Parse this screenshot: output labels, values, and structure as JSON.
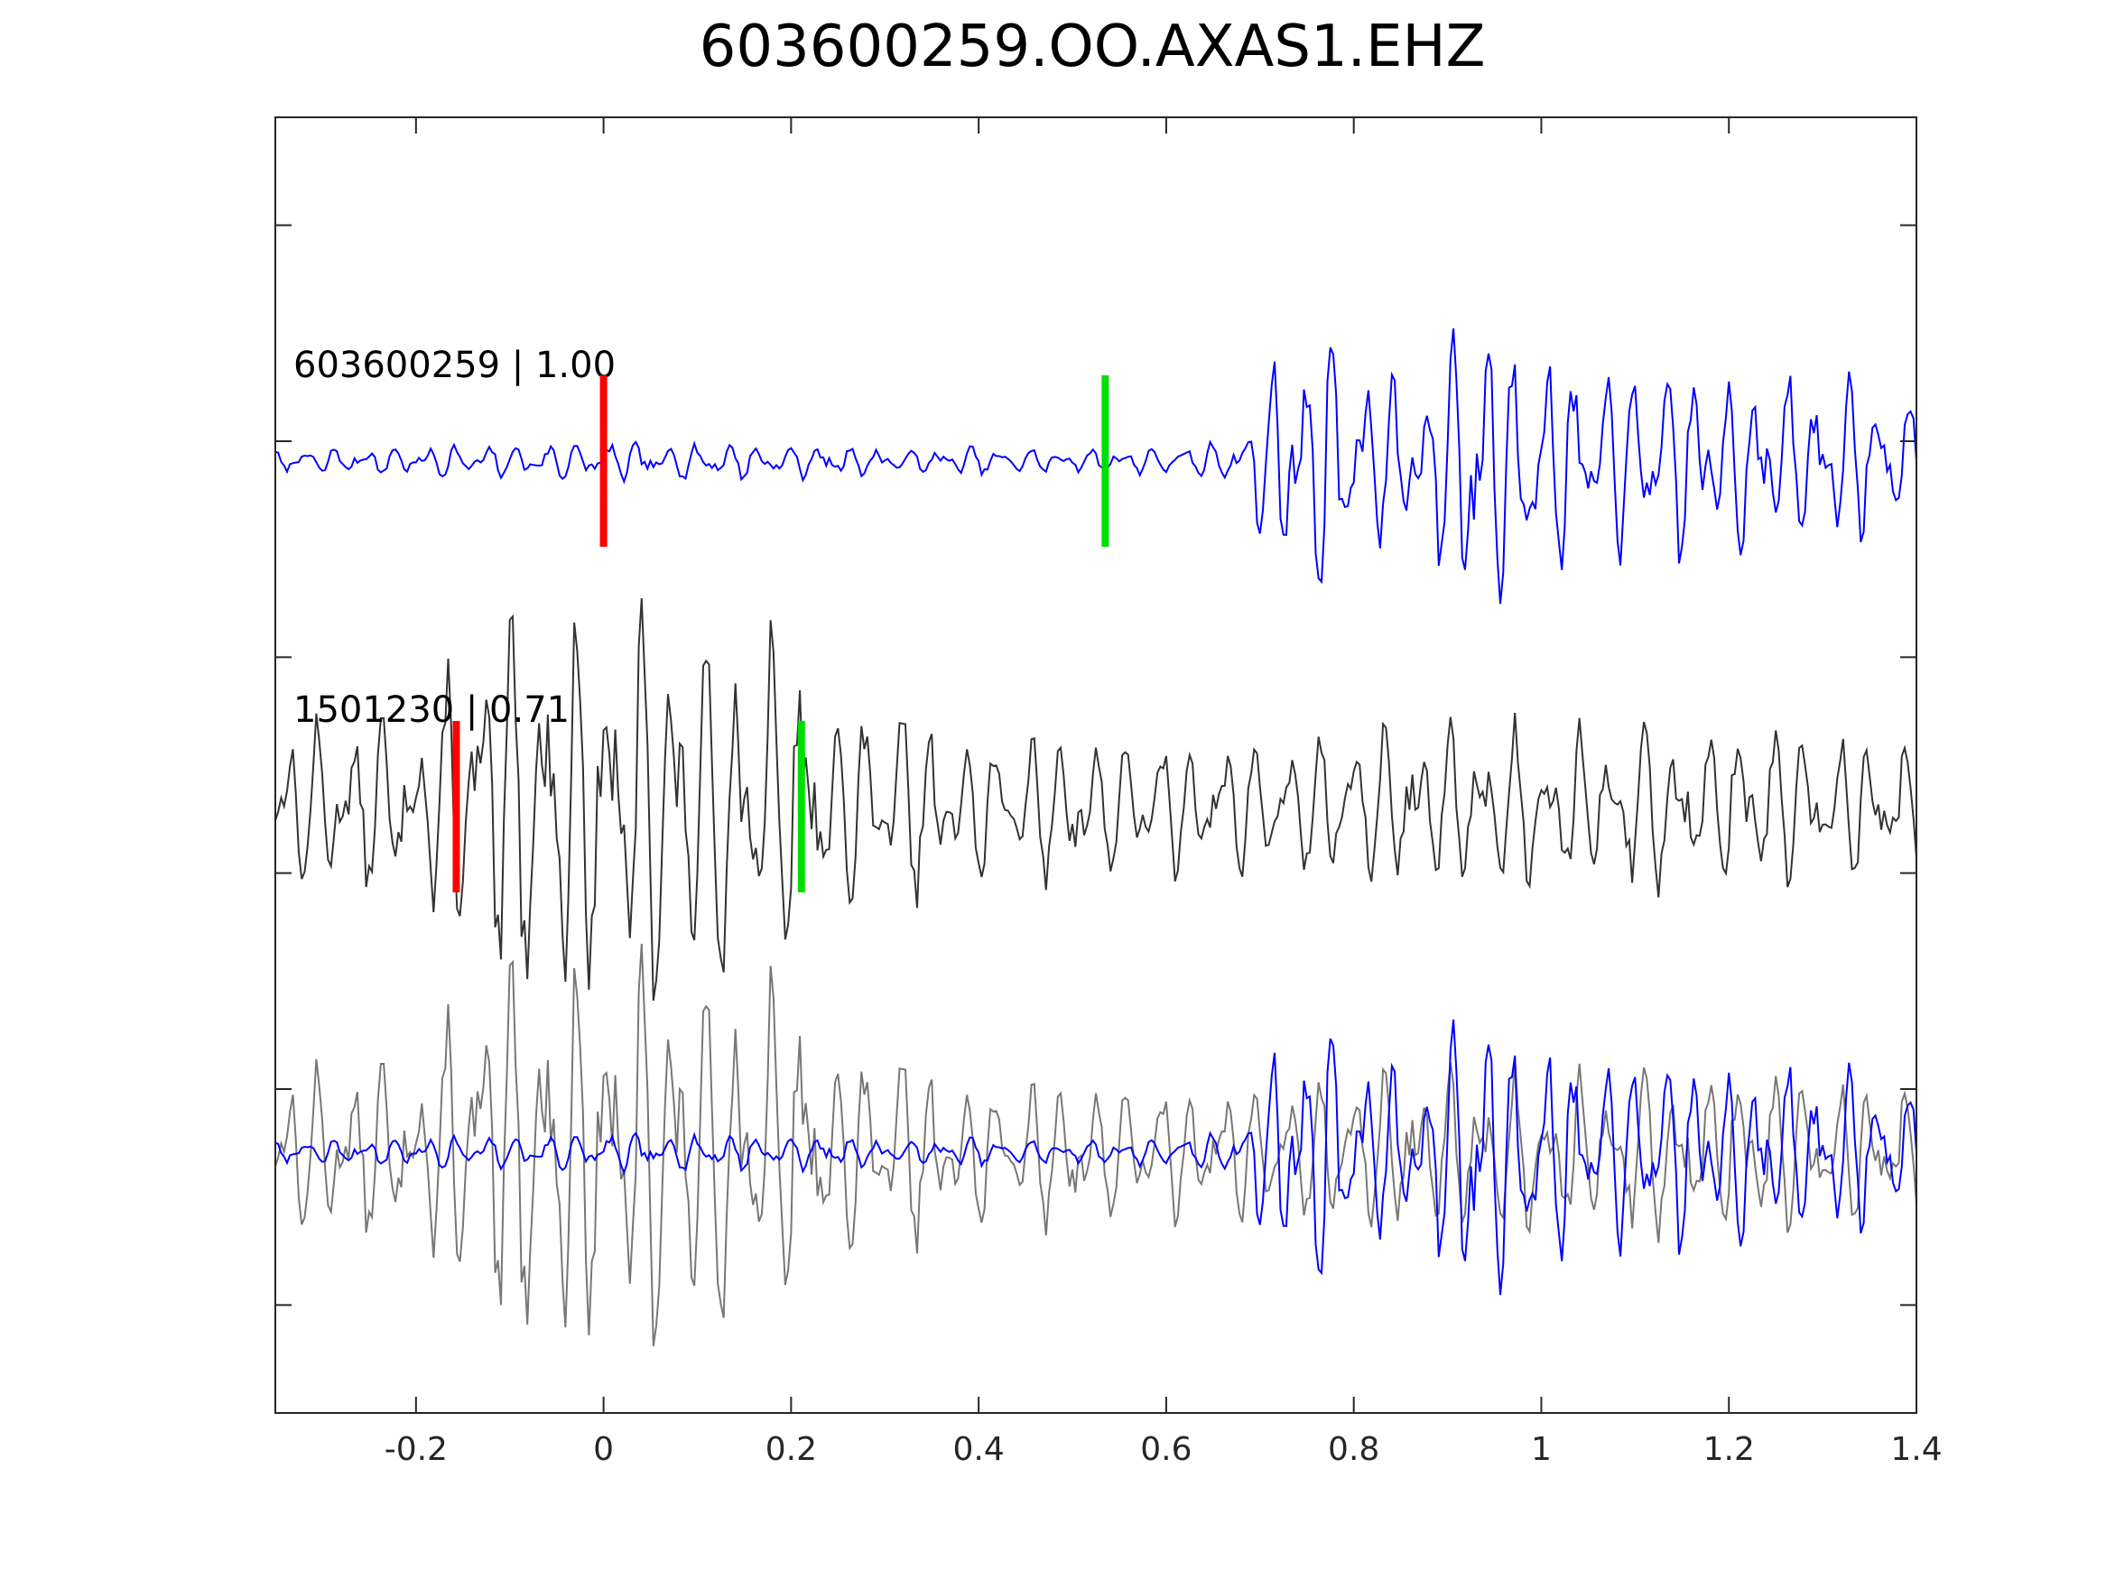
{
  "chart_data": {
    "type": "line",
    "title": "603600259.OO.AXAS1.EHZ",
    "xlabel": "",
    "ylabel": "",
    "xlim": [
      -0.35,
      1.4
    ],
    "x_ticks": [
      "-0.2",
      "0",
      "0.2",
      "0.4",
      "0.6",
      "0.8",
      "1",
      "1.2",
      "1.4"
    ],
    "x_tick_values": [
      -0.2,
      0,
      0.2,
      0.4,
      0.6,
      0.8,
      1,
      1.2,
      1.4
    ],
    "y_tick_count": 6,
    "grid": false,
    "legend": "none",
    "traces": [
      {
        "label": "603600259 | 1.00",
        "color": "#0000ff",
        "pick_p": 0.0,
        "pick_s": 0.535,
        "envelope": [
          [
            -0.35,
            0.06
          ],
          [
            0.0,
            0.1
          ],
          [
            0.53,
            0.06
          ],
          [
            0.68,
            0.1
          ],
          [
            0.7,
            0.45
          ],
          [
            0.77,
            0.8
          ],
          [
            0.8,
            0.55
          ],
          [
            0.88,
            0.35
          ],
          [
            0.92,
            1.0
          ],
          [
            0.97,
            0.6
          ],
          [
            1.05,
            0.45
          ],
          [
            1.15,
            0.5
          ],
          [
            1.4,
            0.35
          ]
        ]
      },
      {
        "label": "1501230 | 0.71",
        "color": "#333333",
        "pick_p": -0.157,
        "pick_s": 0.211,
        "envelope": [
          [
            -0.35,
            0.4
          ],
          [
            -0.2,
            0.45
          ],
          [
            -0.12,
            1.0
          ],
          [
            0.05,
            1.0
          ],
          [
            0.2,
            0.9
          ],
          [
            0.25,
            0.6
          ],
          [
            0.4,
            0.4
          ],
          [
            0.7,
            0.35
          ],
          [
            1.1,
            0.45
          ],
          [
            1.4,
            0.35
          ]
        ]
      }
    ],
    "overlay": {
      "series": [
        "1501230 | 0.71",
        "603600259 | 1.00"
      ],
      "colors": [
        "#777777",
        "#0000ff"
      ]
    },
    "pick_colors": {
      "p": "#ff0000",
      "s": "#00dd00"
    }
  }
}
